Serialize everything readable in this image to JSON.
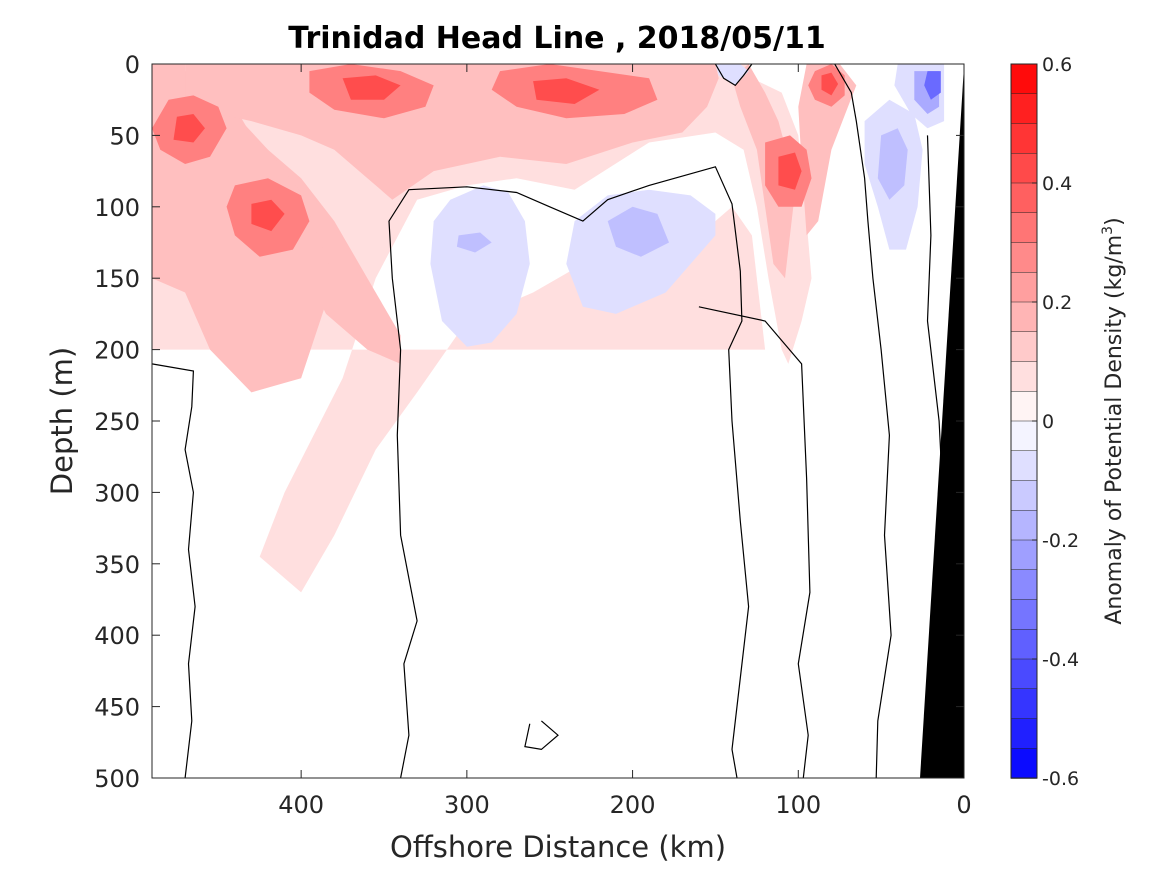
{
  "chart_data": {
    "type": "heatmap",
    "subtype": "filled-contour section",
    "title": "Trinidad Head Line , 2018/05/11",
    "xlabel": "Offshore Distance (km)",
    "ylabel": "Depth (m)",
    "xlim": [
      490,
      0
    ],
    "x_reversed": true,
    "ylim": [
      0,
      500
    ],
    "y_reversed": true,
    "x_ticks": [
      400,
      300,
      200,
      100,
      0
    ],
    "x_tick_labels": [
      "400",
      "300",
      "200",
      "100",
      "0"
    ],
    "y_ticks": [
      0,
      50,
      100,
      150,
      200,
      250,
      300,
      350,
      400,
      450,
      500
    ],
    "y_tick_labels": [
      "0",
      "50",
      "100",
      "150",
      "200",
      "250",
      "300",
      "350",
      "400",
      "450",
      "500"
    ],
    "colorbar": {
      "label_main": "Anomaly of Potential Density (kg/m",
      "label_sup": "3",
      "label_close": ")",
      "range": [
        -0.6,
        0.6
      ],
      "ticks": [
        0.6,
        0.4,
        0.2,
        0,
        -0.2,
        -0.4,
        -0.6
      ],
      "tick_labels": [
        "0.6",
        "0.4",
        "0.2",
        "0",
        "-0.2",
        "-0.4",
        "-0.6"
      ],
      "levels": [
        0.6,
        0.55,
        0.5,
        0.45,
        0.4,
        0.35,
        0.3,
        0.25,
        0.2,
        0.15,
        0.1,
        0.05,
        0,
        -0.05,
        -0.1,
        -0.15,
        -0.2,
        -0.25,
        -0.3,
        -0.35,
        -0.4,
        -0.45,
        -0.5,
        -0.55,
        -0.6
      ],
      "colormap": "blue-white-red"
    },
    "positive_cores": [
      {
        "x_km": 468,
        "depth_m": 45,
        "anomaly": 0.38
      },
      {
        "x_km": 420,
        "depth_m": 108,
        "anomaly": 0.36
      },
      {
        "x_km": 352,
        "depth_m": 18,
        "anomaly": 0.36
      },
      {
        "x_km": 235,
        "depth_m": 20,
        "anomaly": 0.36
      },
      {
        "x_km": 108,
        "depth_m": 75,
        "anomaly": 0.36
      },
      {
        "x_km": 82,
        "depth_m": 15,
        "anomaly": 0.34
      }
    ],
    "negative_cores": [
      {
        "x_km": 20,
        "depth_m": 15,
        "anomaly": -0.3
      },
      {
        "x_km": 45,
        "depth_m": 80,
        "anomaly": -0.18
      },
      {
        "x_km": 290,
        "depth_m": 140,
        "anomaly": -0.1
      },
      {
        "x_km": 200,
        "depth_m": 115,
        "anomaly": -0.12
      }
    ],
    "colors": {
      "positive_light": "#fde2e2",
      "positive_mid": "#fbb5b5",
      "positive_strong": "#f86464",
      "negative_light": "#e4e4fb",
      "negative_mid": "#babaf6",
      "negative_strong": "#3d3df2",
      "land": "#000000",
      "contour_line": "#000000"
    }
  }
}
